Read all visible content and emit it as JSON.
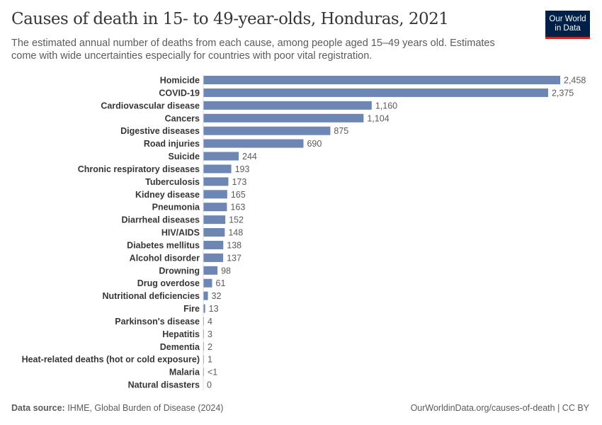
{
  "header": {
    "title": "Causes of death in 15- to 49-year-olds, Honduras, 2021",
    "subtitle": "The estimated annual number of deaths from each cause, among people aged 15–49 years old. Estimates come with wide uncertainties especially for countries with poor vital registration.",
    "logo_line1": "Our World",
    "logo_line2": "in Data"
  },
  "footer": {
    "source_label": "Data source:",
    "source": "IHME, Global Burden of Disease (2024)",
    "url": "OurWorldinData.org/causes-of-death | CC BY"
  },
  "chart_data": {
    "type": "bar",
    "orientation": "horizontal",
    "bar_color": "#6d86b3",
    "categories": [
      "Homicide",
      "COVID-19",
      "Cardiovascular disease",
      "Cancers",
      "Digestive diseases",
      "Road injuries",
      "Suicide",
      "Chronic respiratory diseases",
      "Tuberculosis",
      "Kidney disease",
      "Pneumonia",
      "Diarrheal diseases",
      "HIV/AIDS",
      "Diabetes mellitus",
      "Alcohol disorder",
      "Drowning",
      "Drug overdose",
      "Nutritional deficiencies",
      "Fire",
      "Parkinson's disease",
      "Hepatitis",
      "Dementia",
      "Heat-related deaths (hot or cold exposure)",
      "Malaria",
      "Natural disasters"
    ],
    "values": [
      2458,
      2375,
      1160,
      1104,
      875,
      690,
      244,
      193,
      173,
      165,
      163,
      152,
      148,
      138,
      137,
      98,
      61,
      32,
      13,
      4,
      3,
      2,
      1,
      0.5,
      0
    ],
    "value_labels": [
      "2,458",
      "2,375",
      "1,160",
      "1,104",
      "875",
      "690",
      "244",
      "193",
      "173",
      "165",
      "163",
      "152",
      "148",
      "138",
      "137",
      "98",
      "61",
      "32",
      "13",
      "4",
      "3",
      "2",
      "1",
      "<1",
      "0"
    ]
  }
}
